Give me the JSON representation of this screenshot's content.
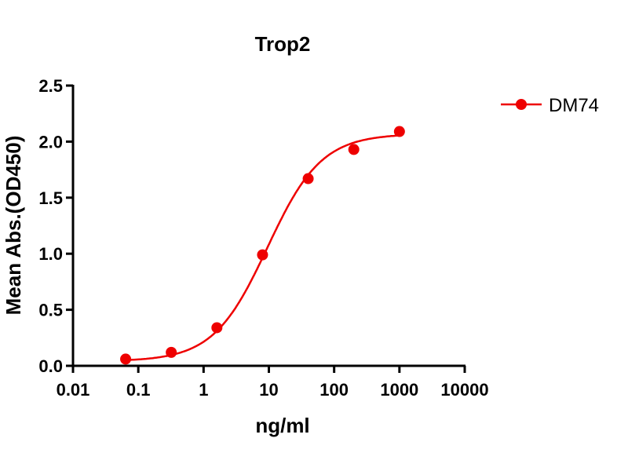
{
  "chart_data": {
    "type": "scatter",
    "title": "Trop2",
    "xlabel": "ng/ml",
    "ylabel": "Mean Abs.(OD450)",
    "xscale": "log",
    "xlim": [
      0.01,
      10000
    ],
    "ylim": [
      0,
      2.5
    ],
    "xticks": [
      0.01,
      0.1,
      1,
      10,
      100,
      1000,
      10000
    ],
    "xtick_labels": [
      "0.01",
      "0.1",
      "1",
      "10",
      "100",
      "1000",
      "10000"
    ],
    "yticks": [
      0,
      0.5,
      1,
      1.5,
      2,
      2.5
    ],
    "ytick_labels": [
      "0.0",
      "0.5",
      "1.0",
      "1.5",
      "2.0",
      "2.5"
    ],
    "grid": false,
    "legend_position": "top-right",
    "series": [
      {
        "name": "DM74",
        "color": "#ee0000",
        "x": [
          0.064,
          0.32,
          1.6,
          8,
          40,
          200,
          1000
        ],
        "y": [
          0.06,
          0.12,
          0.34,
          0.99,
          1.67,
          1.93,
          2.09
        ],
        "fit": {
          "model": "4PL",
          "bottom": 0.04,
          "top": 2.07,
          "ec50": 9.5,
          "hill": 1.05
        }
      }
    ]
  }
}
